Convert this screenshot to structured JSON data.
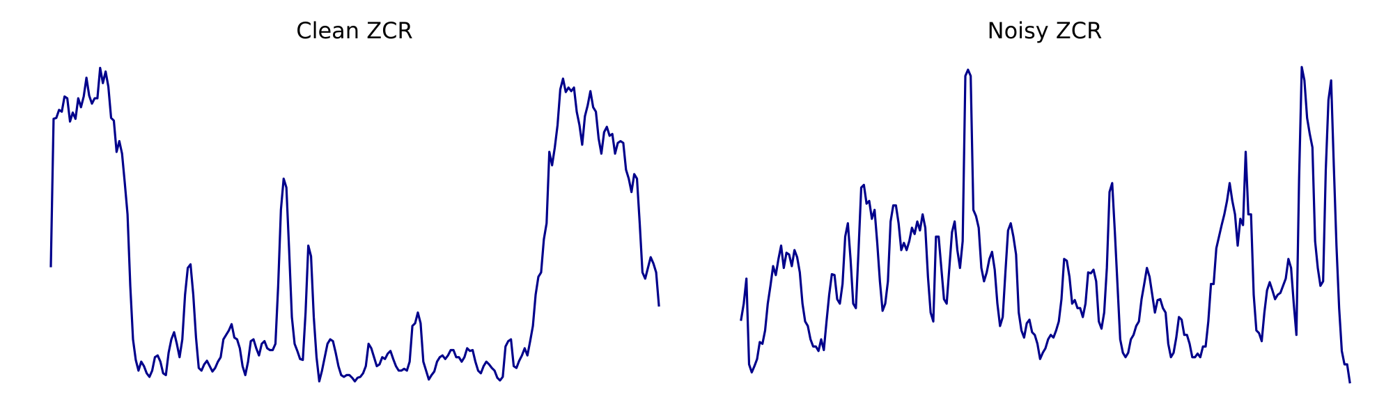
{
  "chart_data": [
    {
      "type": "line",
      "title": "Clean ZCR",
      "color": "#00008b",
      "ylim": [
        0,
        380
      ],
      "values": [
        142,
        307,
        308,
        317,
        315,
        332,
        330,
        304,
        314,
        307,
        330,
        320,
        332,
        353,
        333,
        324,
        330,
        330,
        364,
        347,
        360,
        343,
        308,
        305,
        270,
        282,
        268,
        235,
        200,
        120,
        60,
        37,
        25,
        35,
        30,
        22,
        18,
        25,
        40,
        42,
        35,
        22,
        20,
        45,
        60,
        68,
        55,
        40,
        60,
        110,
        140,
        144,
        110,
        62,
        28,
        25,
        32,
        36,
        30,
        24,
        28,
        35,
        40,
        60,
        65,
        70,
        77,
        62,
        60,
        50,
        30,
        20,
        35,
        58,
        60,
        50,
        42,
        55,
        58,
        50,
        48,
        48,
        55,
        120,
        205,
        240,
        230,
        160,
        85,
        55,
        47,
        38,
        37,
        90,
        165,
        153,
        85,
        40,
        13,
        25,
        40,
        55,
        60,
        58,
        45,
        30,
        20,
        18,
        20,
        20,
        17,
        13,
        17,
        18,
        22,
        30,
        55,
        50,
        40,
        30,
        32,
        40,
        38,
        44,
        47,
        38,
        30,
        25,
        25,
        27,
        25,
        35,
        75,
        78,
        90,
        78,
        35,
        25,
        15,
        20,
        24,
        35,
        40,
        42,
        38,
        42,
        48,
        48,
        40,
        40,
        35,
        40,
        50,
        47,
        48,
        35,
        25,
        22,
        30,
        35,
        32,
        28,
        25,
        17,
        14,
        18,
        52,
        58,
        60,
        30,
        28,
        36,
        42,
        50,
        42,
        58,
        75,
        110,
        130,
        135,
        172,
        190,
        270,
        255,
        275,
        300,
        340,
        352,
        337,
        342,
        338,
        342,
        315,
        300,
        278,
        310,
        322,
        338,
        320,
        315,
        285,
        268,
        292,
        298,
        288,
        290,
        268,
        280,
        282,
        280,
        250,
        240,
        225,
        245,
        240,
        190,
        135,
        128,
        140,
        152,
        145,
        135,
        98
      ]
    },
    {
      "type": "line",
      "title": "Noisy ZCR",
      "color": "#00008b",
      "ylim": [
        0,
        380
      ],
      "values": [
        82,
        100,
        128,
        32,
        23,
        30,
        38,
        57,
        55,
        70,
        100,
        120,
        142,
        132,
        150,
        165,
        140,
        157,
        155,
        142,
        160,
        152,
        135,
        100,
        80,
        75,
        60,
        52,
        52,
        47,
        60,
        48,
        80,
        110,
        133,
        132,
        105,
        100,
        122,
        175,
        190,
        150,
        100,
        95,
        160,
        230,
        233,
        212,
        215,
        195,
        205,
        168,
        125,
        92,
        100,
        125,
        192,
        210,
        210,
        190,
        160,
        168,
        160,
        170,
        185,
        178,
        192,
        182,
        200,
        185,
        130,
        90,
        80,
        175,
        175,
        140,
        105,
        100,
        140,
        180,
        192,
        160,
        140,
        170,
        355,
        362,
        355,
        205,
        198,
        185,
        140,
        125,
        135,
        150,
        158,
        138,
        100,
        75,
        85,
        135,
        182,
        190,
        175,
        155,
        90,
        70,
        62,
        78,
        82,
        68,
        65,
        55,
        38,
        45,
        50,
        60,
        65,
        62,
        70,
        80,
        105,
        150,
        148,
        130,
        100,
        104,
        95,
        95,
        85,
        100,
        135,
        134,
        138,
        125,
        80,
        72,
        90,
        140,
        225,
        235,
        180,
        120,
        60,
        45,
        40,
        45,
        60,
        65,
        75,
        80,
        105,
        122,
        140,
        130,
        110,
        90,
        104,
        105,
        95,
        90,
        55,
        40,
        45,
        62,
        85,
        82,
        65,
        65,
        55,
        40,
        40,
        44,
        40,
        52,
        52,
        80,
        122,
        122,
        162,
        175,
        188,
        200,
        215,
        235,
        215,
        200,
        165,
        195,
        188,
        270,
        200,
        200,
        110,
        70,
        67,
        58,
        90,
        115,
        124,
        115,
        105,
        110,
        112,
        120,
        128,
        150,
        140,
        100,
        65,
        240,
        365,
        350,
        308,
        290,
        275,
        170,
        140,
        120,
        125,
        250,
        328,
        350,
        255,
        165,
        95,
        47,
        32,
        32,
        12
      ]
    }
  ]
}
